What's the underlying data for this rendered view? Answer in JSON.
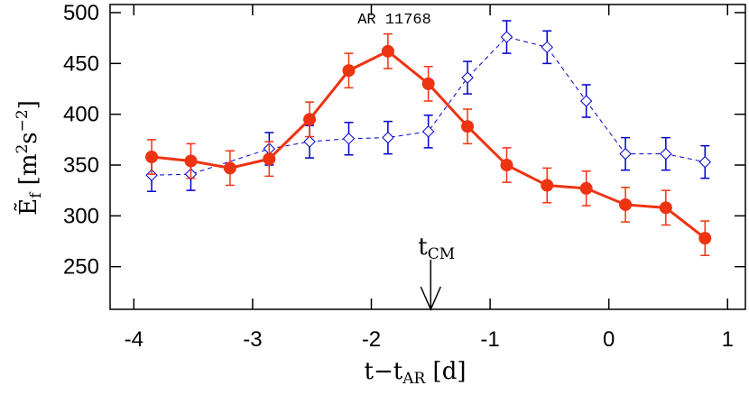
{
  "chart_data": {
    "type": "line",
    "title": "AR 11768",
    "xlabel": [
      "t−t",
      "AR",
      " [d]"
    ],
    "ylabel": [
      "Ẽ",
      "f",
      " [m",
      "2",
      "s",
      "−2",
      "]"
    ],
    "xlim": [
      -4.2,
      1.15
    ],
    "ylim": [
      208,
      508
    ],
    "xticks": [
      -4,
      -3,
      -2,
      -1,
      0,
      1
    ],
    "yticks": [
      250,
      300,
      350,
      400,
      450,
      500
    ],
    "series": [
      {
        "color": "#0000cc",
        "linestyle": "dashed",
        "marker": "diamond",
        "x": [
          -3.85,
          -3.52,
          -2.86,
          -2.52,
          -2.19,
          -1.86,
          -1.52,
          -1.19,
          -0.86,
          -0.52,
          -0.19,
          0.14,
          0.48,
          0.81
        ],
        "values": [
          340,
          341,
          366,
          373,
          376,
          377,
          383,
          436,
          476,
          466,
          413,
          361,
          361,
          353
        ],
        "errors": [
          16,
          16,
          16,
          16,
          16,
          16,
          16,
          16,
          16,
          16,
          16,
          16,
          16,
          16
        ]
      },
      {
        "color": "#ee3311",
        "linestyle": "solid",
        "marker": "circle",
        "x": [
          -3.85,
          -3.52,
          -3.19,
          -2.86,
          -2.52,
          -2.19,
          -1.86,
          -1.52,
          -1.19,
          -0.86,
          -0.52,
          -0.19,
          0.14,
          0.48,
          0.81
        ],
        "values": [
          358,
          354,
          347,
          356,
          395,
          443,
          462,
          430,
          388,
          350,
          330,
          327,
          311,
          308,
          278
        ],
        "errors": [
          17,
          17,
          17,
          17,
          17,
          17,
          17,
          17,
          17,
          17,
          17,
          17,
          17,
          17,
          17
        ]
      }
    ],
    "annotations": [
      {
        "text": [
          "t",
          "CM"
        ],
        "x": -1.5
      }
    ]
  }
}
